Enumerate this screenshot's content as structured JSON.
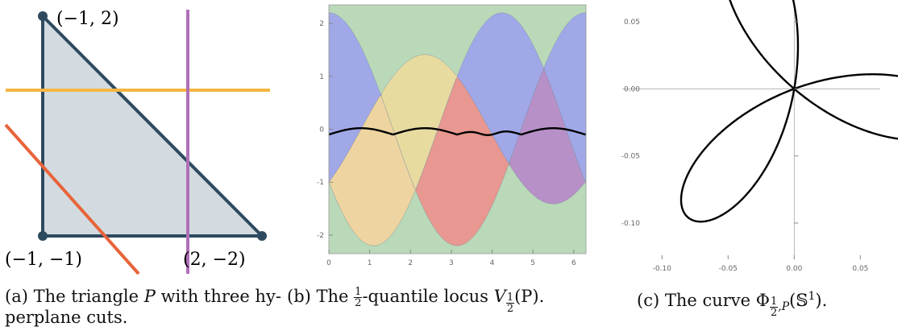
{
  "panel_a": {
    "vertex_labels": {
      "top": "(−1, 2)",
      "bottom_left": "(−1, −1)",
      "bottom_right": "(2, −2)"
    },
    "colors": {
      "triangle_fill": "#d3dbe0",
      "triangle_edge": "#2e4a5e",
      "cut_horizontal": "#f5b642",
      "cut_vertical": "#b070b8",
      "cut_diagonal": "#e8643a"
    },
    "caption": {
      "prefix": "(a) The triangle",
      "symbol": "P",
      "line1_rest": "with three hy-",
      "line2": "perplane cuts."
    }
  },
  "chart_data": [
    {
      "type": "area",
      "xlim": [
        0,
        6.3
      ],
      "ylim": [
        -2.35,
        2.35
      ],
      "x_ticks": [
        "0",
        "1",
        "2",
        "3",
        "4",
        "5",
        "6"
      ],
      "y_ticks": [
        "2",
        "1",
        "0",
        "-1",
        "-2"
      ],
      "grid": false,
      "regions": [
        {
          "color": "#b9d9b9"
        },
        {
          "color": "#a0a8e8"
        },
        {
          "color": "#e8dba0"
        },
        {
          "color": "#e89890"
        },
        {
          "color": "#b890c8"
        },
        {
          "color": "#edd4a0"
        }
      ],
      "series": [
        {
          "amplitude": 2.2,
          "phase_deg": 0
        },
        {
          "amplitude": 1.41,
          "phase_deg": 135
        },
        {
          "amplitude": 2.2,
          "phase_deg": 243
        }
      ],
      "locus": {
        "color": "#000000"
      }
    },
    {
      "type": "line",
      "xlim": [
        -0.13,
        0.065
      ],
      "ylim": [
        -0.127,
        0.065
      ],
      "x_ticks": [
        "-0.10",
        "-0.05",
        "0.00",
        "0.05"
      ],
      "y_ticks": [
        "0.05",
        "0.00",
        "-0.05",
        "-0.10"
      ],
      "grid": false,
      "curve": {
        "petals": 3,
        "radius": 0.125,
        "rotation_deg": -40,
        "color": "#000000"
      }
    }
  ],
  "panel_b": {
    "caption": {
      "prefix": "(b) The",
      "frac_num": "1",
      "frac_den": "2",
      "middle": "-quantile locus",
      "symbol": "V",
      "arg": "(P)."
    }
  },
  "panel_c": {
    "caption": {
      "prefix": "(c) The curve",
      "symbol": "Φ",
      "sub_tail": ",P",
      "arg": "(𝕊",
      "sup": "1",
      "close": ")."
    }
  }
}
